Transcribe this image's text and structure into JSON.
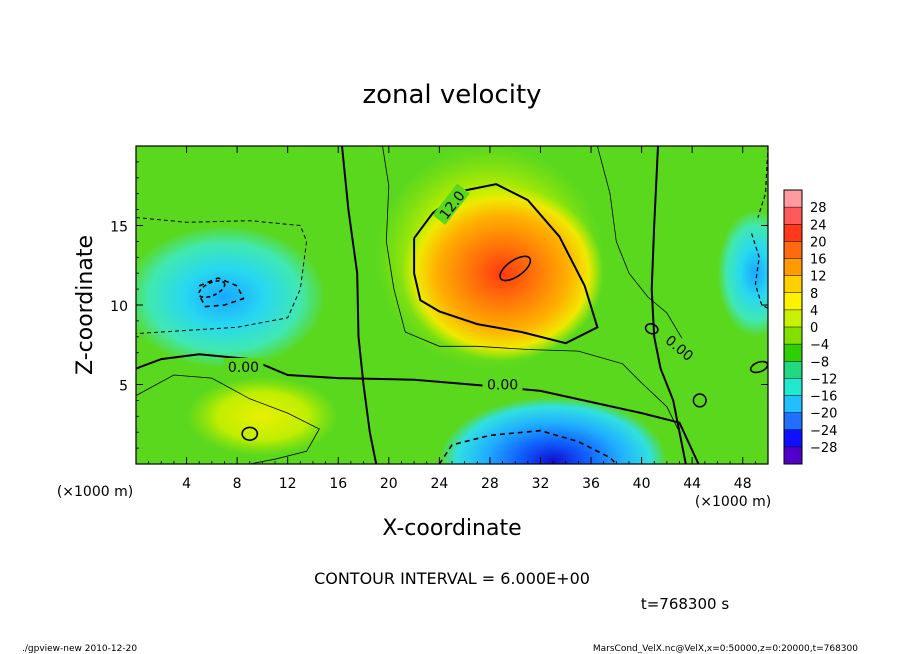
{
  "chart_data": {
    "type": "heatmap",
    "title": "zonal velocity",
    "xlabel": "X-coordinate",
    "ylabel": "Z-coordinate",
    "x_unit": "(×1000 m)",
    "y_unit": "(×1000 m)",
    "xlim": [
      0,
      50
    ],
    "ylim": [
      0,
      20
    ],
    "x_ticks": [
      4,
      8,
      12,
      16,
      20,
      24,
      28,
      32,
      36,
      40,
      44,
      48
    ],
    "y_ticks": [
      5,
      10,
      15
    ],
    "colorbar": {
      "levels": [
        28,
        24,
        20,
        16,
        12,
        8,
        4,
        0,
        -4,
        -8,
        -12,
        -16,
        -20,
        -24,
        -28
      ],
      "labels": [
        "28",
        "24",
        "20",
        "16",
        "12",
        "8",
        "4",
        "0",
        "−4",
        "−8",
        "−12",
        "−16",
        "−20",
        "−24",
        "−28"
      ],
      "range": [
        -32,
        32
      ],
      "colors": [
        "#ff9aa0",
        "#ff5a5a",
        "#ff3a1a",
        "#ff6a10",
        "#ff9a00",
        "#ffd000",
        "#fff200",
        "#c8f000",
        "#82e000",
        "#2ed000",
        "#22d880",
        "#22e8d0",
        "#20c0ff",
        "#2070ff",
        "#1010ff",
        "#5000c8"
      ]
    },
    "contour_labels": [
      {
        "text": "12.0",
        "x": 25.0,
        "y": 16.3
      },
      {
        "text": "0.00",
        "x": 8.5,
        "y": 6.1
      },
      {
        "text": "0.00",
        "x": 29.0,
        "y": 5.0
      },
      {
        "text": "0.00",
        "x": 43.0,
        "y": 7.3
      }
    ],
    "features": [
      {
        "kind": "max",
        "x": 30,
        "y": 12.0,
        "value": 22
      },
      {
        "kind": "min",
        "x": 33,
        "y": 0.5,
        "value": -20
      },
      {
        "kind": "min",
        "x": 7,
        "y": 10.5,
        "value": -10
      }
    ]
  },
  "contour_interval": "CONTOUR INTERVAL = 6.000E+00",
  "time_label": "t=768300 s",
  "footer_left": "./gpview-new  2010-12-20",
  "footer_right": "MarsCond_VelX.nc@VelX,x=0:50000,z=0:20000,t=768300",
  "colors": {
    "background": "#ffffff",
    "field_base": "#5ad81e"
  }
}
